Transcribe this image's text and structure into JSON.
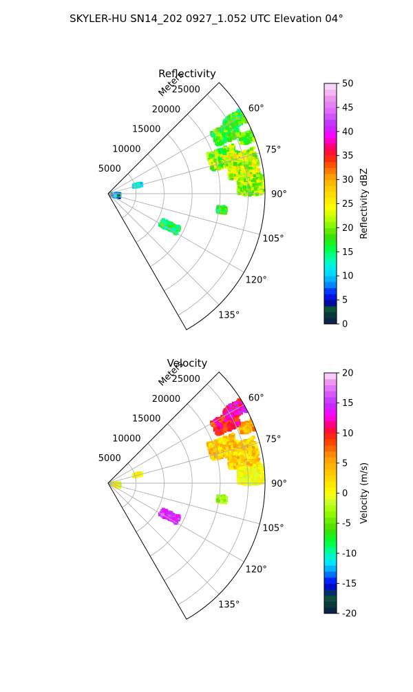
{
  "figure": {
    "title": "SKYLER-HU  SN14_202  0927_1.052 UTC Elevation 04°"
  },
  "chart_data": [
    {
      "type": "heatmap",
      "projection": "polar-sector",
      "title": "Reflectivity",
      "radial_label": "Meters",
      "radial_ticks": [
        "5000",
        "10000",
        "15000",
        "20000",
        "25000"
      ],
      "radial_tick_values": [
        5000,
        10000,
        15000,
        20000,
        25000
      ],
      "r_max": 28000,
      "angle_range": [
        45,
        150
      ],
      "angle_ticks": [
        "60°",
        "75°",
        "90°",
        "105°",
        "120°",
        "135°"
      ],
      "angle_tick_values": [
        60,
        75,
        90,
        105,
        120,
        135
      ],
      "grid": true,
      "colorbar": {
        "label": "Reflectivity dBZ",
        "range": [
          0,
          50
        ],
        "tick_labels": [
          "0",
          "5",
          "10",
          "15",
          "20",
          "25",
          "30",
          "35",
          "40",
          "45",
          "50"
        ],
        "tick_values": [
          0,
          5,
          10,
          15,
          20,
          25,
          30,
          35,
          40,
          45,
          50
        ],
        "colormap_stops": [
          {
            "v": 0,
            "c": "#0b1a4d"
          },
          {
            "v": 2,
            "c": "#0a3a3a"
          },
          {
            "v": 3.5,
            "c": "#0b5a3a"
          },
          {
            "v": 4.5,
            "c": "#0000aa"
          },
          {
            "v": 6.5,
            "c": "#0022ff"
          },
          {
            "v": 8.5,
            "c": "#0099ff"
          },
          {
            "v": 11,
            "c": "#00e5ff"
          },
          {
            "v": 13.5,
            "c": "#00ffb0"
          },
          {
            "v": 16,
            "c": "#00ff33"
          },
          {
            "v": 18.5,
            "c": "#44dd00"
          },
          {
            "v": 21,
            "c": "#99ff00"
          },
          {
            "v": 24,
            "c": "#ffff00"
          },
          {
            "v": 28,
            "c": "#ffd000"
          },
          {
            "v": 31,
            "c": "#ff9900"
          },
          {
            "v": 34,
            "c": "#ff3300"
          },
          {
            "v": 36.5,
            "c": "#ff0055"
          },
          {
            "v": 39,
            "c": "#ff00ff"
          },
          {
            "v": 41.5,
            "c": "#bb33ff"
          },
          {
            "v": 44,
            "c": "#dd66ff"
          },
          {
            "v": 47,
            "c": "#ee99ee"
          },
          {
            "v": 50,
            "c": "#ffe6ff"
          }
        ]
      },
      "echoes": [
        {
          "az": 63,
          "r": 23500,
          "daz": 3.5,
          "dr": 2300,
          "v": 18,
          "spread": 4
        },
        {
          "az": 60,
          "r": 26000,
          "daz": 2.5,
          "dr": 1800,
          "v": 17,
          "spread": 4
        },
        {
          "az": 73,
          "r": 21500,
          "daz": 4.5,
          "dr": 2500,
          "v": 20,
          "spread": 5
        },
        {
          "az": 78,
          "r": 24500,
          "daz": 5.5,
          "dr": 2800,
          "v": 23,
          "spread": 5
        },
        {
          "az": 87,
          "r": 25500,
          "daz": 3.5,
          "dr": 2300,
          "v": 21,
          "spread": 4
        },
        {
          "az": 68,
          "r": 27000,
          "daz": 2,
          "dr": 1500,
          "v": 19,
          "spread": 4
        },
        {
          "az": 98,
          "r": 20500,
          "daz": 1.5,
          "dr": 800,
          "v": 17,
          "spread": 3
        },
        {
          "az": 118,
          "r": 12500,
          "daz": 3,
          "dr": 1700,
          "v": 16,
          "spread": 4
        },
        {
          "az": 74,
          "r": 5500,
          "daz": 2,
          "dr": 700,
          "v": 11,
          "spread": 3
        },
        {
          "az": 100,
          "r": 1200,
          "daz": 10,
          "dr": 900,
          "v": 7,
          "spread": 6
        }
      ]
    },
    {
      "type": "heatmap",
      "projection": "polar-sector",
      "title": "Velocity",
      "radial_label": "Meters",
      "radial_ticks": [
        "5000",
        "10000",
        "15000",
        "20000",
        "25000"
      ],
      "radial_tick_values": [
        5000,
        10000,
        15000,
        20000,
        25000
      ],
      "r_max": 28000,
      "angle_range": [
        45,
        150
      ],
      "angle_ticks": [
        "60°",
        "75°",
        "90°",
        "105°",
        "120°",
        "135°"
      ],
      "angle_tick_values": [
        60,
        75,
        90,
        105,
        120,
        135
      ],
      "grid": true,
      "colorbar": {
        "label": "Velocity (m/s)",
        "range": [
          -20,
          20
        ],
        "tick_labels": [
          "-20",
          "-15",
          "-10",
          "-5",
          "0",
          "5",
          "10",
          "15",
          "20"
        ],
        "tick_values": [
          -20,
          -15,
          -10,
          -5,
          0,
          5,
          10,
          15,
          20
        ],
        "colormap_stops": [
          {
            "v": -20,
            "c": "#0b1a4d"
          },
          {
            "v": -18.5,
            "c": "#0a3a3a"
          },
          {
            "v": -17,
            "c": "#0b5a3a"
          },
          {
            "v": -16,
            "c": "#0000aa"
          },
          {
            "v": -14.5,
            "c": "#0022ff"
          },
          {
            "v": -13,
            "c": "#0099ff"
          },
          {
            "v": -11.5,
            "c": "#00e5ff"
          },
          {
            "v": -10,
            "c": "#00ffb0"
          },
          {
            "v": -8,
            "c": "#00ff33"
          },
          {
            "v": -6,
            "c": "#44dd00"
          },
          {
            "v": -3,
            "c": "#99ff00"
          },
          {
            "v": -1,
            "c": "#ddff33"
          },
          {
            "v": 0,
            "c": "#ffff00"
          },
          {
            "v": 3,
            "c": "#ffd000"
          },
          {
            "v": 6,
            "c": "#ff9900"
          },
          {
            "v": 9,
            "c": "#ff3300"
          },
          {
            "v": 11,
            "c": "#ff0055"
          },
          {
            "v": 13,
            "c": "#ff00ff"
          },
          {
            "v": 15,
            "c": "#bb33ff"
          },
          {
            "v": 17,
            "c": "#dd66ff"
          },
          {
            "v": 18.5,
            "c": "#ee99ee"
          },
          {
            "v": 20,
            "c": "#ffe6ff"
          }
        ]
      },
      "echoes": [
        {
          "az": 63,
          "r": 23500,
          "daz": 3.5,
          "dr": 2300,
          "v": 10,
          "spread": 3
        },
        {
          "az": 60,
          "r": 26000,
          "daz": 2.5,
          "dr": 1800,
          "v": 12,
          "spread": 3
        },
        {
          "az": 73,
          "r": 21500,
          "daz": 4.5,
          "dr": 2500,
          "v": 3,
          "spread": 3
        },
        {
          "az": 78,
          "r": 24500,
          "daz": 5.5,
          "dr": 2800,
          "v": 3,
          "spread": 3
        },
        {
          "az": 87,
          "r": 25500,
          "daz": 3.5,
          "dr": 2300,
          "v": 0,
          "spread": 2
        },
        {
          "az": 68,
          "r": 27000,
          "daz": 2,
          "dr": 1500,
          "v": 5,
          "spread": 3
        },
        {
          "az": 98,
          "r": 20500,
          "daz": 1.5,
          "dr": 800,
          "v": -3,
          "spread": 2
        },
        {
          "az": 118,
          "r": 12500,
          "daz": 3,
          "dr": 1700,
          "v": 15,
          "spread": 2
        },
        {
          "az": 74,
          "r": 5500,
          "daz": 2,
          "dr": 700,
          "v": 0,
          "spread": 2
        },
        {
          "az": 100,
          "r": 1200,
          "daz": 10,
          "dr": 900,
          "v": 0,
          "spread": 3
        }
      ]
    }
  ]
}
